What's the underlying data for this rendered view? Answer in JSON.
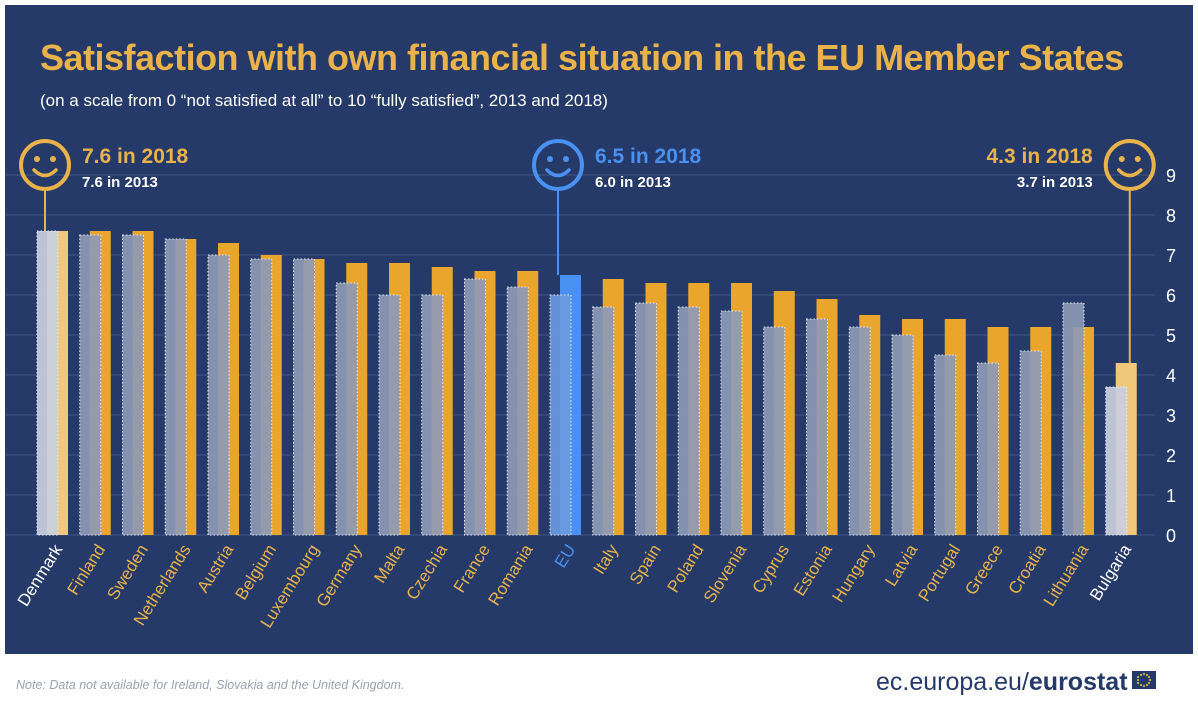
{
  "title": "Satisfaction with own financial situation in the EU Member States",
  "subtitle": "(on a scale from 0 “not satisfied at all” to 10 “fully satisfied”, 2013 and 2018)",
  "note": "Note: Data not available for Ireland, Slovakia and the United Kingdom.",
  "footer": {
    "url": "ec.europa.eu/",
    "brand": "eurostat"
  },
  "colors": {
    "background": "#253a68",
    "bar_2018": "#e9a52c",
    "bar_2013": "#8d9ab5",
    "eu_2018": "#4a90f0",
    "eu_2013": "#6a9ae0",
    "highlight_2018": "#f1c77a",
    "highlight_2013": "#c9cfde",
    "accent_text": "#e9b24a"
  },
  "callouts": [
    {
      "country": "Denmark",
      "line1": "7.6 in 2018",
      "line2": "7.6 in 2013",
      "icon": "smiley-face-icon",
      "color": "#e9b24a",
      "side": "right"
    },
    {
      "country": "EU",
      "line1": "6.5 in 2018",
      "line2": "6.0 in 2013",
      "icon": "smiley-face-icon",
      "color": "#4a90f0",
      "side": "right"
    },
    {
      "country": "Bulgaria",
      "line1": "4.3 in 2018",
      "line2": "3.7 in 2013",
      "icon": "smiley-face-icon",
      "color": "#e9b24a",
      "side": "left"
    }
  ],
  "chart_data": {
    "type": "bar",
    "categories": [
      "Denmark",
      "Finland",
      "Sweden",
      "Netherlands",
      "Austria",
      "Belgium",
      "Luxembourg",
      "Germany",
      "Malta",
      "Czechia",
      "France",
      "Romania",
      "EU",
      "Italy",
      "Spain",
      "Poland",
      "Slovenia",
      "Cyprus",
      "Estonia",
      "Hungary",
      "Latvia",
      "Portugal",
      "Greece",
      "Croatia",
      "Lithuania",
      "Bulgaria"
    ],
    "series": [
      {
        "name": "2013",
        "values": [
          7.6,
          7.5,
          7.5,
          7.4,
          7.0,
          6.9,
          6.9,
          6.3,
          6.0,
          6.0,
          6.4,
          6.2,
          6.0,
          5.7,
          5.8,
          5.7,
          5.6,
          5.2,
          5.4,
          5.2,
          5.0,
          4.5,
          4.3,
          4.6,
          5.8,
          3.7
        ]
      },
      {
        "name": "2018",
        "values": [
          7.6,
          7.6,
          7.6,
          7.4,
          7.3,
          7.0,
          6.9,
          6.8,
          6.8,
          6.7,
          6.6,
          6.6,
          6.5,
          6.4,
          6.3,
          6.3,
          6.3,
          6.1,
          5.9,
          5.5,
          5.4,
          5.4,
          5.2,
          5.2,
          5.2,
          4.3
        ]
      }
    ],
    "yticks": [
      0,
      1,
      2,
      3,
      4,
      5,
      6,
      7,
      8,
      9
    ],
    "ylim": [
      0,
      9.6
    ],
    "grid": true,
    "label_colors": {
      "Denmark": "#ffffff",
      "EU": "#4a90f0",
      "Bulgaria": "#ffffff",
      "default": "#e9b24a"
    }
  }
}
